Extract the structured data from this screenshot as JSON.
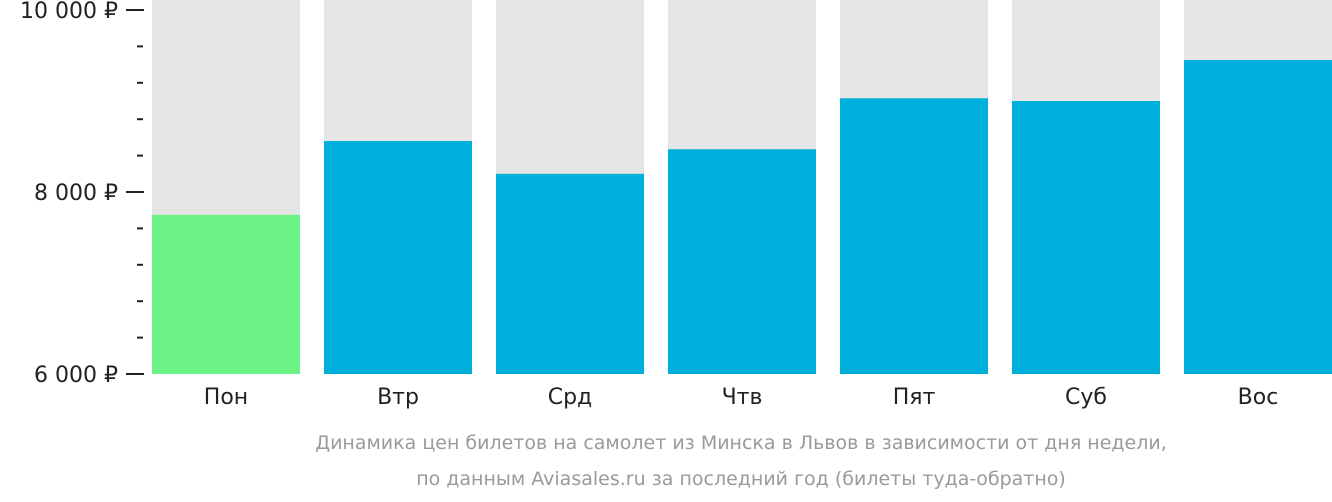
{
  "chart_data": {
    "type": "bar",
    "categories": [
      "Пон",
      "Втр",
      "Срд",
      "Чтв",
      "Пят",
      "Суб",
      "Вос"
    ],
    "values": [
      7750,
      8560,
      8200,
      8470,
      9030,
      9000,
      9450
    ],
    "cheapest_index": 0,
    "ylim": [
      6000,
      10000
    ],
    "yticks": [
      {
        "value": 6000,
        "label": "6 000 ₽"
      },
      {
        "value": 8000,
        "label": "8 000 ₽"
      },
      {
        "value": 10000,
        "label": "10 000 ₽"
      }
    ],
    "minor_tick_step": 400,
    "colors": {
      "bar": "#00b0dc",
      "cheapest": "#6cf287",
      "background": "#e6e6e6",
      "axis": "#222222"
    }
  },
  "caption": {
    "line1": "Динамика цен билетов на самолет из Минска в Львов в зависимости от дня недели,",
    "line2": "по данным Aviasales.ru за последний год (билеты туда-обратно)"
  }
}
